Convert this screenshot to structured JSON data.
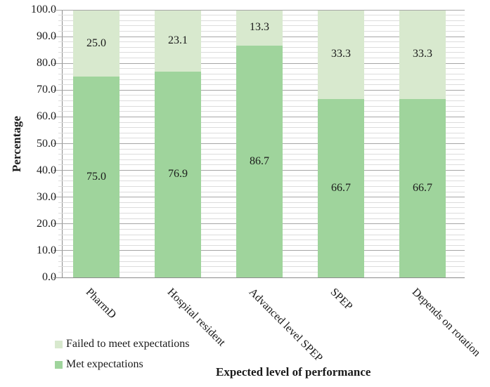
{
  "chart_data": {
    "type": "bar",
    "stacked": true,
    "orientation": "vertical",
    "title": "",
    "xlabel": "Expected level of performance",
    "ylabel": "Percentage",
    "categories": [
      "PharmD",
      "Hospital resident",
      "Advanced level SPEP",
      "SPEP",
      "Depends on rotation"
    ],
    "series": [
      {
        "name": "Met expectations",
        "color": "#9fd49c",
        "values": [
          75.0,
          76.9,
          86.7,
          66.7,
          66.7
        ]
      },
      {
        "name": "Failed to meet expectations",
        "color": "#d8e9ce",
        "values": [
          25.0,
          23.1,
          13.3,
          33.3,
          33.3
        ]
      }
    ],
    "data_labels_shown": true,
    "ylim": [
      0,
      100
    ],
    "y_tick_labels": [
      "0.0",
      "10.0",
      "20.0",
      "30.0",
      "40.0",
      "50.0",
      "60.0",
      "70.0",
      "80.0",
      "90.0",
      "100.0"
    ],
    "y_major_tick_step": 10,
    "y_minor_gridline_step": 2,
    "grid": true,
    "legend_position": "bottom-left",
    "colors": {
      "met": "#9fd49c",
      "failed": "#d8e9ce",
      "minor_gridline": "#dcdcdc",
      "major_gridline": "#a6a6a6",
      "axis_line": "#8c8c8c",
      "text": "#1a1a1a",
      "background": "#ffffff"
    }
  },
  "legend": {
    "items": [
      {
        "label": "Failed to meet expectations",
        "color": "#d8e9ce"
      },
      {
        "label": "Met expectations",
        "color": "#9fd49c"
      }
    ]
  },
  "axes": {
    "y_title": "Percentage",
    "x_title": "Expected level of performance"
  }
}
